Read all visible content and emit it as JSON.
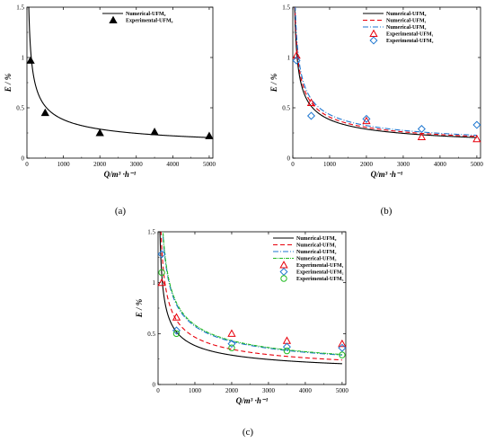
{
  "chart_data": [
    {
      "type": "line",
      "panel_label": "(a)",
      "ylabel": "E / %",
      "xlabel": "Q/m³ ·h⁻¹",
      "xlim": [
        0,
        5100
      ],
      "ylim": [
        0,
        1.5
      ],
      "xticks": [
        "0",
        "1000",
        "2000",
        "3000",
        "4000",
        "5000"
      ],
      "yticks": [
        "0",
        "0.5",
        "1",
        "1.5"
      ],
      "legend_position": "top-right",
      "series": [
        {
          "name": "Numerical-UFM₀",
          "kind": "curve",
          "color": "#000000",
          "dash": "",
          "k": 1.02
        },
        {
          "name": "Experimental-UFM₀",
          "kind": "marker",
          "marker": "triangle-filled",
          "color": "#000000",
          "x": [
            100,
            500,
            2000,
            3500,
            5000
          ],
          "y": [
            0.97,
            0.45,
            0.25,
            0.26,
            0.22
          ]
        }
      ]
    },
    {
      "type": "line",
      "panel_label": "(b)",
      "ylabel": "E / %",
      "xlabel": "Q/m³ ·h⁻¹",
      "xlim": [
        0,
        5100
      ],
      "ylim": [
        0,
        1.5
      ],
      "xticks": [
        "0",
        "1000",
        "2000",
        "3000",
        "4000",
        "5000"
      ],
      "yticks": [
        "0",
        "0.5",
        "1",
        "1.5"
      ],
      "legend_position": "top-right",
      "series": [
        {
          "name": "Numerical-UFM₀",
          "kind": "curve",
          "color": "#000000",
          "dash": "",
          "k": 1.02
        },
        {
          "name": "Numerical-UFM₁",
          "kind": "curve",
          "color": "#e8000b",
          "dash": "5,3",
          "k": 1.1
        },
        {
          "name": "Numerical-UFM₂",
          "kind": "curve",
          "color": "#1f77d0",
          "dash": "6,2,1,2",
          "k": 1.18
        },
        {
          "name": "Experimental-UFM₁",
          "kind": "marker",
          "marker": "triangle-open",
          "color": "#e8000b",
          "x": [
            100,
            500,
            2000,
            3500,
            5000
          ],
          "y": [
            1.02,
            0.55,
            0.37,
            0.21,
            0.19
          ]
        },
        {
          "name": "Experimental-UFM₂",
          "kind": "marker",
          "marker": "diamond-open",
          "color": "#1f77d0",
          "x": [
            100,
            500,
            2000,
            3500,
            5000
          ],
          "y": [
            0.97,
            0.42,
            0.39,
            0.29,
            0.33
          ]
        }
      ]
    },
    {
      "type": "line",
      "panel_label": "(c)",
      "ylabel": "E / %",
      "xlabel": "Q/m³ ·h⁻¹",
      "xlim": [
        0,
        5100
      ],
      "ylim": [
        0,
        1.5
      ],
      "xticks": [
        "0",
        "1000",
        "2000",
        "3000",
        "4000",
        "5000"
      ],
      "yticks": [
        "0",
        "0.5",
        "1",
        "1.5"
      ],
      "legend_position": "top-right",
      "series": [
        {
          "name": "Numerical-UFM₀",
          "kind": "curve",
          "color": "#000000",
          "dash": "",
          "k": 1.02
        },
        {
          "name": "Numerical-UFM₁",
          "kind": "curve",
          "color": "#e8000b",
          "dash": "5,3",
          "k": 1.28
        },
        {
          "name": "Numerical-UFM₂",
          "kind": "curve",
          "color": "#1f77d0",
          "dash": "6,2,1,2",
          "k": 1.62
        },
        {
          "name": "Numerical-UFM₃",
          "kind": "curve",
          "color": "#22bb22",
          "dash": "4,1,1,1",
          "k": 1.66
        },
        {
          "name": "Experimental-UFM₁",
          "kind": "marker",
          "marker": "triangle-open",
          "color": "#e8000b",
          "x": [
            100,
            500,
            2000,
            3500,
            5000
          ],
          "y": [
            1.0,
            0.66,
            0.5,
            0.43,
            0.4
          ]
        },
        {
          "name": "Experimental-UFM₂",
          "kind": "marker",
          "marker": "diamond-open",
          "color": "#1f77d0",
          "x": [
            100,
            500,
            2000,
            3500,
            5000
          ],
          "y": [
            1.28,
            0.53,
            0.4,
            0.37,
            0.36
          ]
        },
        {
          "name": "Experimental-UFM₃",
          "kind": "marker",
          "marker": "circle-open",
          "color": "#22bb22",
          "x": [
            100,
            500,
            2000,
            3500,
            5000
          ],
          "y": [
            1.1,
            0.5,
            0.36,
            0.33,
            0.29
          ]
        }
      ]
    }
  ]
}
